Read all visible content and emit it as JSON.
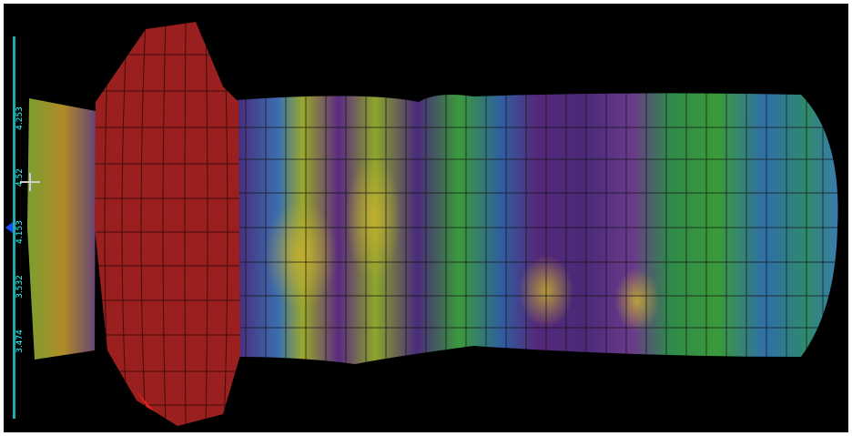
{
  "legend": {
    "labels": [
      "4.253",
      "4.52",
      "4.153",
      "3.532",
      "3.474"
    ]
  }
}
